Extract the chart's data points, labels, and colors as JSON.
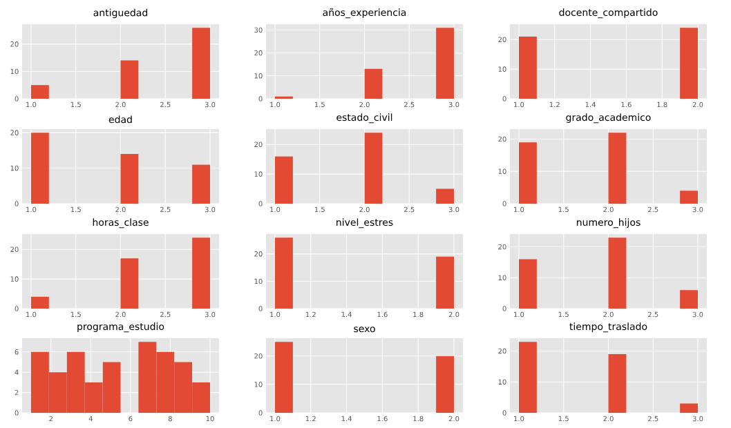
{
  "chart_data": [
    {
      "type": "histogram",
      "title": "antiguedad",
      "bins": [
        1,
        1.2,
        1.4,
        1.6,
        1.8,
        2,
        2.2,
        2.4,
        2.6,
        2.8,
        3
      ],
      "values": [
        5,
        0,
        0,
        0,
        0,
        14,
        0,
        0,
        0,
        26
      ],
      "color": "#e24a33",
      "xlim": [
        0.9,
        3.1
      ],
      "ylim": [
        0,
        27.3
      ],
      "xticks": [
        {
          "value": 1,
          "label": "1.0"
        },
        {
          "value": 1.5,
          "label": "1.5"
        },
        {
          "value": 2,
          "label": "2.0"
        },
        {
          "value": 2.5,
          "label": "2.5"
        },
        {
          "value": 3,
          "label": "3.0"
        }
      ],
      "yticks": [
        0,
        10,
        20
      ],
      "grid": true
    },
    {
      "type": "histogram",
      "title": "años_experiencia",
      "bins": [
        1,
        1.2,
        1.4,
        1.6,
        1.8,
        2,
        2.2,
        2.4,
        2.6,
        2.8,
        3
      ],
      "values": [
        1,
        0,
        0,
        0,
        0,
        13,
        0,
        0,
        0,
        31
      ],
      "color": "#e24a33",
      "xlim": [
        0.9,
        3.1
      ],
      "ylim": [
        0,
        32.55
      ],
      "xticks": [
        {
          "value": 1,
          "label": "1.0"
        },
        {
          "value": 1.5,
          "label": "1.5"
        },
        {
          "value": 2,
          "label": "2.0"
        },
        {
          "value": 2.5,
          "label": "2.5"
        },
        {
          "value": 3,
          "label": "3.0"
        }
      ],
      "yticks": [
        0,
        10,
        20,
        30
      ],
      "grid": true
    },
    {
      "type": "histogram",
      "title": "docente_compartido",
      "bins": [
        1,
        1.1,
        1.2,
        1.3,
        1.4,
        1.5,
        1.6,
        1.7,
        1.8,
        1.9,
        2
      ],
      "values": [
        21,
        0,
        0,
        0,
        0,
        0,
        0,
        0,
        0,
        24
      ],
      "color": "#e24a33",
      "xlim": [
        0.95,
        2.05
      ],
      "ylim": [
        0,
        25.2
      ],
      "xticks": [
        {
          "value": 1,
          "label": "1.0"
        },
        {
          "value": 1.2,
          "label": "1.2"
        },
        {
          "value": 1.4,
          "label": "1.4"
        },
        {
          "value": 1.6,
          "label": "1.6"
        },
        {
          "value": 1.8,
          "label": "1.8"
        },
        {
          "value": 2,
          "label": "2.0"
        }
      ],
      "yticks": [
        0,
        10,
        20
      ],
      "grid": true
    },
    {
      "type": "histogram",
      "title": "edad",
      "bins": [
        1,
        1.2,
        1.4,
        1.6,
        1.8,
        2,
        2.2,
        2.4,
        2.6,
        2.8,
        3
      ],
      "values": [
        20,
        0,
        0,
        0,
        0,
        14,
        0,
        0,
        0,
        11
      ],
      "color": "#e24a33",
      "xlim": [
        0.9,
        3.1
      ],
      "ylim": [
        0,
        21
      ],
      "xticks": [
        {
          "value": 1,
          "label": "1.0"
        },
        {
          "value": 1.5,
          "label": "1.5"
        },
        {
          "value": 2,
          "label": "2.0"
        },
        {
          "value": 2.5,
          "label": "2.5"
        },
        {
          "value": 3,
          "label": "3.0"
        }
      ],
      "yticks": [
        0,
        10,
        20
      ],
      "grid": true
    },
    {
      "type": "histogram",
      "title": "estado_civil",
      "bins": [
        1,
        1.2,
        1.4,
        1.6,
        1.8,
        2,
        2.2,
        2.4,
        2.6,
        2.8,
        3
      ],
      "values": [
        16,
        0,
        0,
        0,
        0,
        24,
        0,
        0,
        0,
        5
      ],
      "color": "#e24a33",
      "xlim": [
        0.9,
        3.1
      ],
      "ylim": [
        0,
        25.2
      ],
      "xticks": [
        {
          "value": 1,
          "label": "1.0"
        },
        {
          "value": 1.5,
          "label": "1.5"
        },
        {
          "value": 2,
          "label": "2.0"
        },
        {
          "value": 2.5,
          "label": "2.5"
        },
        {
          "value": 3,
          "label": "3.0"
        }
      ],
      "yticks": [
        0,
        10,
        20
      ],
      "grid": true
    },
    {
      "type": "histogram",
      "title": "grado_academico",
      "bins": [
        1,
        1.2,
        1.4,
        1.6,
        1.8,
        2,
        2.2,
        2.4,
        2.6,
        2.8,
        3
      ],
      "values": [
        19,
        0,
        0,
        0,
        0,
        22,
        0,
        0,
        0,
        4
      ],
      "color": "#e24a33",
      "xlim": [
        0.9,
        3.1
      ],
      "ylim": [
        0,
        23.1
      ],
      "xticks": [
        {
          "value": 1,
          "label": "1.0"
        },
        {
          "value": 1.5,
          "label": "1.5"
        },
        {
          "value": 2,
          "label": "2.0"
        },
        {
          "value": 2.5,
          "label": "2.5"
        },
        {
          "value": 3,
          "label": "3.0"
        }
      ],
      "yticks": [
        0,
        10,
        20
      ],
      "grid": true
    },
    {
      "type": "histogram",
      "title": "horas_clase",
      "bins": [
        1,
        1.2,
        1.4,
        1.6,
        1.8,
        2,
        2.2,
        2.4,
        2.6,
        2.8,
        3
      ],
      "values": [
        4,
        0,
        0,
        0,
        0,
        17,
        0,
        0,
        0,
        24
      ],
      "color": "#e24a33",
      "xlim": [
        0.9,
        3.1
      ],
      "ylim": [
        0,
        25.2
      ],
      "xticks": [
        {
          "value": 1,
          "label": "1.0"
        },
        {
          "value": 1.5,
          "label": "1.5"
        },
        {
          "value": 2,
          "label": "2.0"
        },
        {
          "value": 2.5,
          "label": "2.5"
        },
        {
          "value": 3,
          "label": "3.0"
        }
      ],
      "yticks": [
        0,
        10,
        20
      ],
      "grid": true
    },
    {
      "type": "histogram",
      "title": "nivel_estres",
      "bins": [
        1,
        1.1,
        1.2,
        1.3,
        1.4,
        1.5,
        1.6,
        1.7,
        1.8,
        1.9,
        2
      ],
      "values": [
        26,
        0,
        0,
        0,
        0,
        0,
        0,
        0,
        0,
        19
      ],
      "color": "#e24a33",
      "xlim": [
        0.95,
        2.05
      ],
      "ylim": [
        0,
        27.3
      ],
      "xticks": [
        {
          "value": 1,
          "label": "1.0"
        },
        {
          "value": 1.2,
          "label": "1.2"
        },
        {
          "value": 1.4,
          "label": "1.4"
        },
        {
          "value": 1.6,
          "label": "1.6"
        },
        {
          "value": 1.8,
          "label": "1.8"
        },
        {
          "value": 2,
          "label": "2.0"
        }
      ],
      "yticks": [
        0,
        10,
        20
      ],
      "grid": true
    },
    {
      "type": "histogram",
      "title": "numero_hijos",
      "bins": [
        1,
        1.2,
        1.4,
        1.6,
        1.8,
        2,
        2.2,
        2.4,
        2.6,
        2.8,
        3
      ],
      "values": [
        16,
        0,
        0,
        0,
        0,
        23,
        0,
        0,
        0,
        6
      ],
      "color": "#e24a33",
      "xlim": [
        0.9,
        3.1
      ],
      "ylim": [
        0,
        24.15
      ],
      "xticks": [
        {
          "value": 1,
          "label": "1.0"
        },
        {
          "value": 1.5,
          "label": "1.5"
        },
        {
          "value": 2,
          "label": "2.0"
        },
        {
          "value": 2.5,
          "label": "2.5"
        },
        {
          "value": 3,
          "label": "3.0"
        }
      ],
      "yticks": [
        0,
        10,
        20
      ],
      "grid": true
    },
    {
      "type": "histogram",
      "title": "programa_estudio",
      "bins": [
        1,
        1.9,
        2.8,
        3.7,
        4.6,
        5.5,
        6.4,
        7.3,
        8.2,
        9.1,
        10
      ],
      "values": [
        6,
        4,
        6,
        3,
        5,
        0,
        7,
        6,
        5,
        3
      ],
      "color": "#e24a33",
      "xlim": [
        0.55,
        10.45
      ],
      "ylim": [
        0,
        7.35
      ],
      "xticks": [
        2,
        4,
        6,
        8,
        10
      ],
      "yticks": [
        0,
        2,
        4,
        6
      ],
      "grid": true
    },
    {
      "type": "histogram",
      "title": "sexo",
      "bins": [
        1,
        1.1,
        1.2,
        1.3,
        1.4,
        1.5,
        1.6,
        1.7,
        1.8,
        1.9,
        2
      ],
      "values": [
        25,
        0,
        0,
        0,
        0,
        0,
        0,
        0,
        0,
        20
      ],
      "color": "#e24a33",
      "xlim": [
        0.95,
        2.05
      ],
      "ylim": [
        0,
        26.25
      ],
      "xticks": [
        {
          "value": 1,
          "label": "1.0"
        },
        {
          "value": 1.2,
          "label": "1.2"
        },
        {
          "value": 1.4,
          "label": "1.4"
        },
        {
          "value": 1.6,
          "label": "1.6"
        },
        {
          "value": 1.8,
          "label": "1.8"
        },
        {
          "value": 2,
          "label": "2.0"
        }
      ],
      "yticks": [
        0,
        10,
        20
      ],
      "grid": true
    },
    {
      "type": "histogram",
      "title": "tiempo_traslado",
      "bins": [
        1,
        1.2,
        1.4,
        1.6,
        1.8,
        2,
        2.2,
        2.4,
        2.6,
        2.8,
        3
      ],
      "values": [
        23,
        0,
        0,
        0,
        0,
        19,
        0,
        0,
        0,
        3
      ],
      "color": "#e24a33",
      "xlim": [
        0.9,
        3.1
      ],
      "ylim": [
        0,
        24.15
      ],
      "xticks": [
        {
          "value": 1,
          "label": "1.0"
        },
        {
          "value": 1.5,
          "label": "1.5"
        },
        {
          "value": 2,
          "label": "2.0"
        },
        {
          "value": 2.5,
          "label": "2.5"
        },
        {
          "value": 3,
          "label": "3.0"
        }
      ],
      "yticks": [
        0,
        10,
        20
      ],
      "grid": true
    }
  ]
}
